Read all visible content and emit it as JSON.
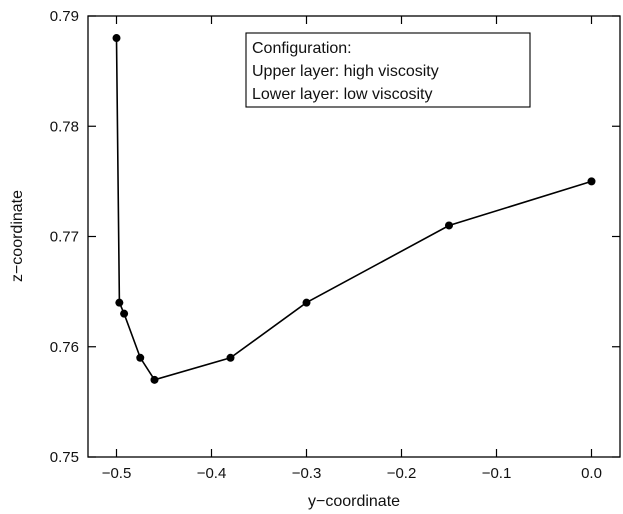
{
  "chart_data": {
    "type": "line",
    "xlabel": "y−coordinate",
    "ylabel": "z−coordinate",
    "xlim": [
      -0.53,
      0.03
    ],
    "ylim": [
      0.75,
      0.79
    ],
    "x_ticks": [
      -0.5,
      -0.4,
      -0.3,
      -0.2,
      -0.1,
      0.0
    ],
    "x_tick_labels": [
      "−0.5",
      "−0.4",
      "−0.3",
      "−0.2",
      "−0.1",
      "0.0"
    ],
    "y_ticks": [
      0.75,
      0.76,
      0.77,
      0.78,
      0.79
    ],
    "y_tick_labels": [
      "0.75",
      "0.76",
      "0.77",
      "0.78",
      "0.79"
    ],
    "grid": false,
    "legend_position": "top-center",
    "annotation_lines": [
      "Configuration:",
      "Upper layer: high viscosity",
      "Lower layer: low viscosity"
    ],
    "series": [
      {
        "x": [
          -0.5,
          -0.497,
          -0.492,
          -0.475,
          -0.46,
          -0.38,
          -0.3,
          -0.15,
          0.0
        ],
        "y": [
          0.788,
          0.764,
          0.763,
          0.759,
          0.757,
          0.759,
          0.764,
          0.771,
          0.775
        ],
        "color": "#000000",
        "marker": "filled-circle"
      }
    ]
  }
}
